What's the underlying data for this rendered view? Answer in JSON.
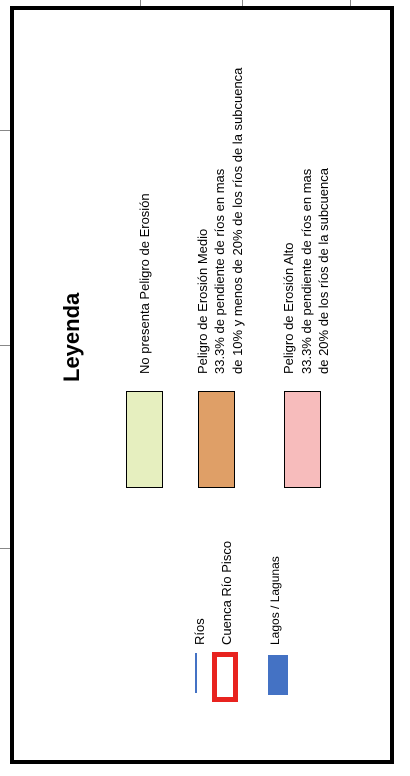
{
  "legend": {
    "title": "Leyenda",
    "hazard": [
      {
        "color": "#e6efbf",
        "lines": [
          "No presenta Peligro de Erosión"
        ]
      },
      {
        "color": "#df9f67",
        "lines": [
          "Peligro de Erosión Medio",
          "33.3% de pendiente de ríos en mas",
          "de 10%  y menos de 20% de los ríos de la subcuenca"
        ]
      },
      {
        "color": "#f7bcbc",
        "lines": [
          "Peligro de Erosión Alto",
          "33.3% de pendiente de ríos en mas",
          "de 20% de los ríos de la subcuenca"
        ]
      }
    ],
    "features": {
      "rios": {
        "label": "Ríos",
        "color": "#4472c4",
        "icon": "river-line-icon"
      },
      "cuenca": {
        "label": "Cuenca Río Pisco",
        "color": "#e8231f",
        "icon": "basin-outline-icon"
      },
      "lagos": {
        "label": "Lagos / Lagunas",
        "color": "#4472c4",
        "icon": "lake-fill-icon"
      }
    }
  }
}
